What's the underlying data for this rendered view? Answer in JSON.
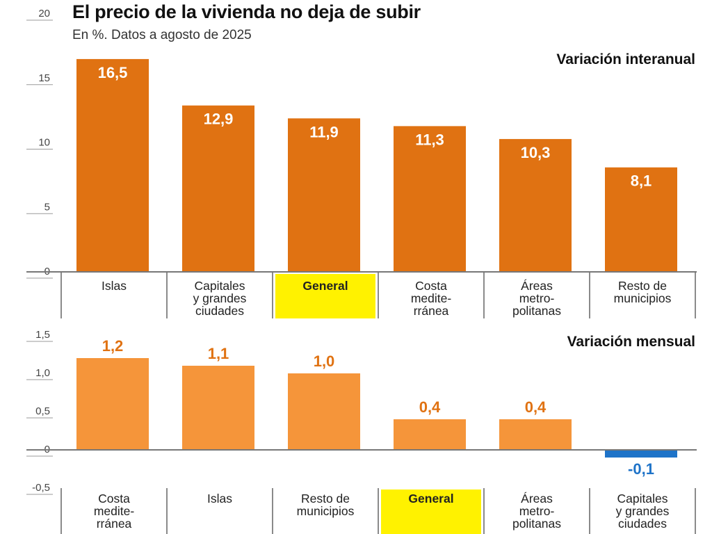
{
  "header": {
    "title": "El precio de la vivienda no deja de subir",
    "subtitle": "En %. Datos a agosto de 2025"
  },
  "colors": {
    "annual_bar": "#E07212",
    "monthly_bar": "#F5953A",
    "negative_bar": "#1E73C8",
    "highlight": "#FFF200",
    "monthly_label": "#E07212",
    "negative_label": "#1E73C8"
  },
  "chart_data": [
    {
      "type": "bar",
      "title": "Variación interanual",
      "categories": [
        [
          "Islas"
        ],
        [
          "Capitales",
          "y grandes",
          "ciudades"
        ],
        [
          "General"
        ],
        [
          "Costa",
          "medite-",
          "rránea"
        ],
        [
          "Áreas",
          "metro-",
          "politanas"
        ],
        [
          "Resto de",
          "municipios"
        ]
      ],
      "values": [
        16.5,
        12.9,
        11.9,
        11.3,
        10.3,
        8.1
      ],
      "value_labels": [
        "16,5",
        "12,9",
        "11,9",
        "11,3",
        "10,3",
        "8,1"
      ],
      "highlight_index": 2,
      "ylim": [
        0,
        20
      ],
      "yticks": [
        0,
        5,
        10,
        15,
        20
      ],
      "ytick_labels": [
        "0",
        "5",
        "10",
        "15",
        "20"
      ],
      "xlabel": "",
      "ylabel": ""
    },
    {
      "type": "bar",
      "title": "Variación mensual",
      "categories": [
        [
          "Costa",
          "medite-",
          "rránea"
        ],
        [
          "Islas"
        ],
        [
          "Resto de",
          "municipios"
        ],
        [
          "General"
        ],
        [
          "Áreas",
          "metro-",
          "politanas"
        ],
        [
          "Capitales",
          "y grandes",
          "ciudades"
        ]
      ],
      "values": [
        1.2,
        1.1,
        1.0,
        0.4,
        0.4,
        -0.1
      ],
      "value_labels": [
        "1,2",
        "1,1",
        "1,0",
        "0,4",
        "0,4",
        "-0,1"
      ],
      "highlight_index": 3,
      "ylim": [
        -0.5,
        1.5
      ],
      "yticks": [
        -0.5,
        0,
        0.5,
        1.0,
        1.5
      ],
      "ytick_labels": [
        "-0,5",
        "0",
        "0,5",
        "1,0",
        "1,5"
      ],
      "xlabel": "",
      "ylabel": ""
    }
  ]
}
